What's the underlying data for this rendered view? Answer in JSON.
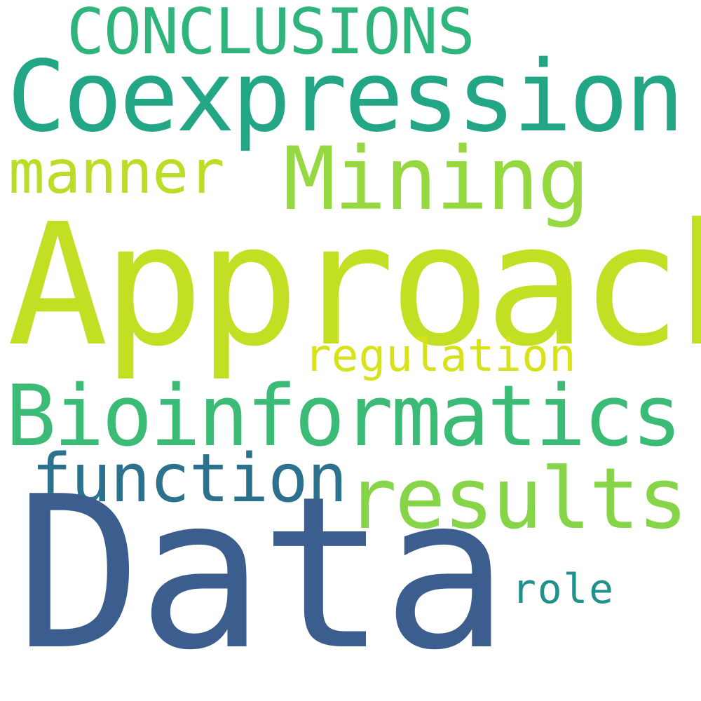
{
  "words": [
    {
      "id": "conclusions",
      "text": "CONCLUSIONS",
      "color": "#2fb47c"
    },
    {
      "id": "coexpression",
      "text": "Coexpression",
      "color": "#22a685"
    },
    {
      "id": "manner",
      "text": "manner",
      "color": "#bade28"
    },
    {
      "id": "mining",
      "text": "Mining",
      "color": "#95d840"
    },
    {
      "id": "approach",
      "text": "Approach",
      "color": "#c2df23"
    },
    {
      "id": "regulation",
      "text": "regulation",
      "color": "#d8e219"
    },
    {
      "id": "bioinformatics",
      "text": "Bioinformatics",
      "color": "#3bbb75"
    },
    {
      "id": "function",
      "text": "function",
      "color": "#2c728e"
    },
    {
      "id": "results",
      "text": "results",
      "color": "#86d549"
    },
    {
      "id": "data",
      "text": "Data",
      "color": "#3b5e8e"
    },
    {
      "id": "role",
      "text": "role",
      "color": "#21918c"
    }
  ]
}
